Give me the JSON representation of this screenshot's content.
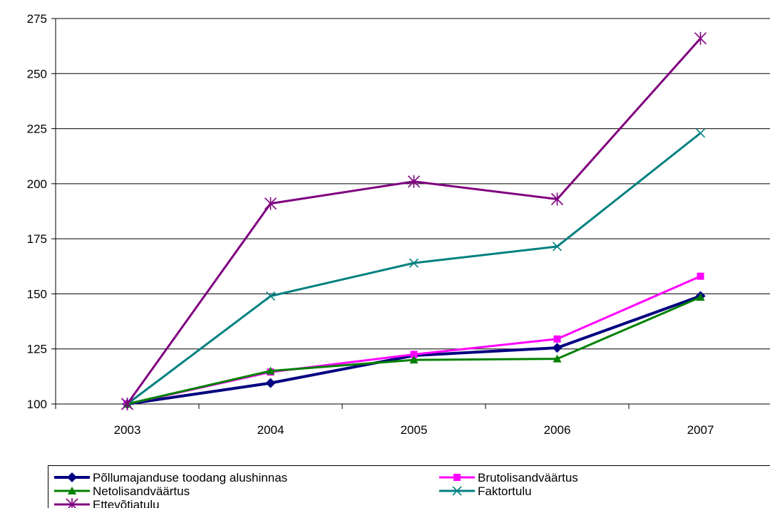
{
  "chart_data": {
    "type": "line",
    "title": "",
    "xlabel": "",
    "ylabel": "",
    "x": [
      "2003",
      "2004",
      "2005",
      "2006",
      "2007"
    ],
    "ylim": [
      100,
      275
    ],
    "yticks": [
      100,
      125,
      150,
      175,
      200,
      225,
      250,
      275
    ],
    "grid": "horizontal",
    "legend_position": "bottom",
    "series": [
      {
        "name": "Põllumajanduse toodang alushinnas",
        "color": "#000080",
        "marker": "diamond",
        "values": [
          100,
          109.5,
          122,
          125.5,
          149
        ]
      },
      {
        "name": "Brutolisandväärtus",
        "color": "#ff00ff",
        "marker": "square",
        "values": [
          100,
          114.5,
          122.5,
          129.5,
          158
        ]
      },
      {
        "name": "Netolisandväärtus",
        "color": "#008000",
        "marker": "triangle",
        "values": [
          100,
          115,
          120,
          120.5,
          148.5
        ]
      },
      {
        "name": "Faktortulu",
        "color": "#008080",
        "marker": "x",
        "values": [
          100,
          149,
          164,
          171.5,
          223
        ]
      },
      {
        "name": "Ettevõtjatulu",
        "color": "#800080",
        "marker": "star",
        "values": [
          100,
          191,
          201,
          193,
          266
        ]
      }
    ]
  }
}
